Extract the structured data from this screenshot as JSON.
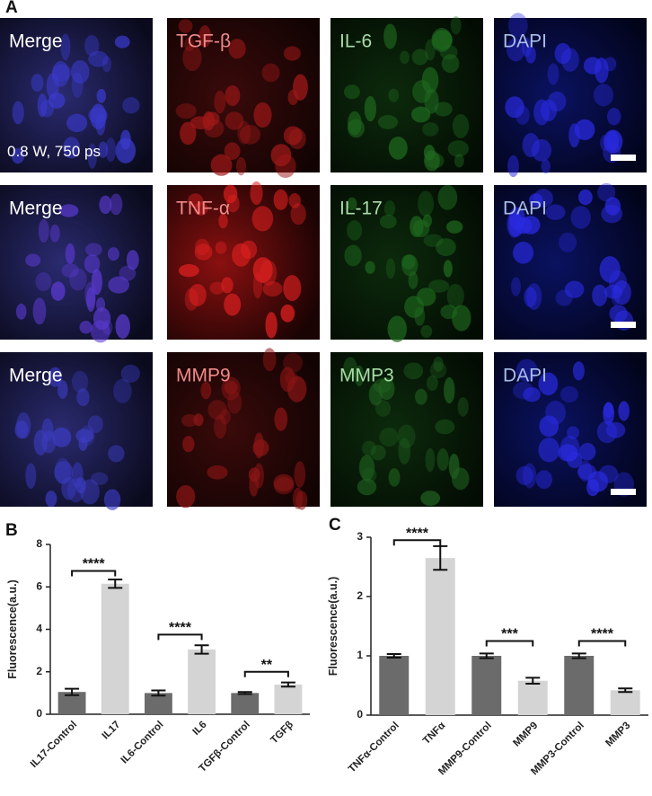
{
  "panel_a": {
    "label": "A",
    "rows": [
      [
        "Merge",
        "TGF-β",
        "IL-6",
        "DAPI"
      ],
      [
        "Merge",
        "TNF-α",
        "IL-17",
        "DAPI"
      ],
      [
        "Merge",
        "MMP9",
        "MMP3",
        "DAPI"
      ]
    ],
    "note": "0.8 W, 750 ps"
  },
  "chart_data": [
    {
      "type": "bar",
      "panel_label": "B",
      "y_label": "Fluorescence(a.u.)",
      "categories": [
        "IL17-Control",
        "IL17",
        "IL6-Control",
        "IL6",
        "TGFβ-Control",
        "TGFβ"
      ],
      "values": [
        1.05,
        6.15,
        1.0,
        3.05,
        1.0,
        1.4
      ],
      "errors": [
        0.15,
        0.2,
        0.12,
        0.2,
        0.05,
        0.1
      ],
      "colors": [
        "#6b6b6b",
        "#d4d4d4",
        "#6b6b6b",
        "#d4d4d4",
        "#6b6b6b",
        "#d4d4d4"
      ],
      "ylim": [
        0,
        8
      ],
      "yticks": [
        0,
        2,
        4,
        6,
        8
      ],
      "annotations": [
        {
          "text": "****",
          "y": 6.75
        },
        {
          "text": "****",
          "y": 3.75
        },
        {
          "text": "**",
          "y": 2.0
        }
      ]
    },
    {
      "type": "bar",
      "panel_label": "C",
      "y_label": "Fluorescence(a.u.)",
      "categories": [
        "TNFα-Control",
        "TNFα",
        "MMP9-Control",
        "MMP9",
        "MMP3-Control",
        "MMP3"
      ],
      "values": [
        1.0,
        2.65,
        1.0,
        0.58,
        1.0,
        0.42
      ],
      "errors": [
        0.03,
        0.2,
        0.04,
        0.05,
        0.04,
        0.03
      ],
      "colors": [
        "#6b6b6b",
        "#d4d4d4",
        "#6b6b6b",
        "#d4d4d4",
        "#6b6b6b",
        "#d4d4d4"
      ],
      "ylim": [
        0,
        3
      ],
      "yticks": [
        0,
        1,
        2,
        3
      ],
      "annotations": [
        {
          "text": "****",
          "y": 2.95
        },
        {
          "text": "***",
          "y": 1.25
        },
        {
          "text": "****",
          "y": 1.25
        }
      ]
    }
  ]
}
